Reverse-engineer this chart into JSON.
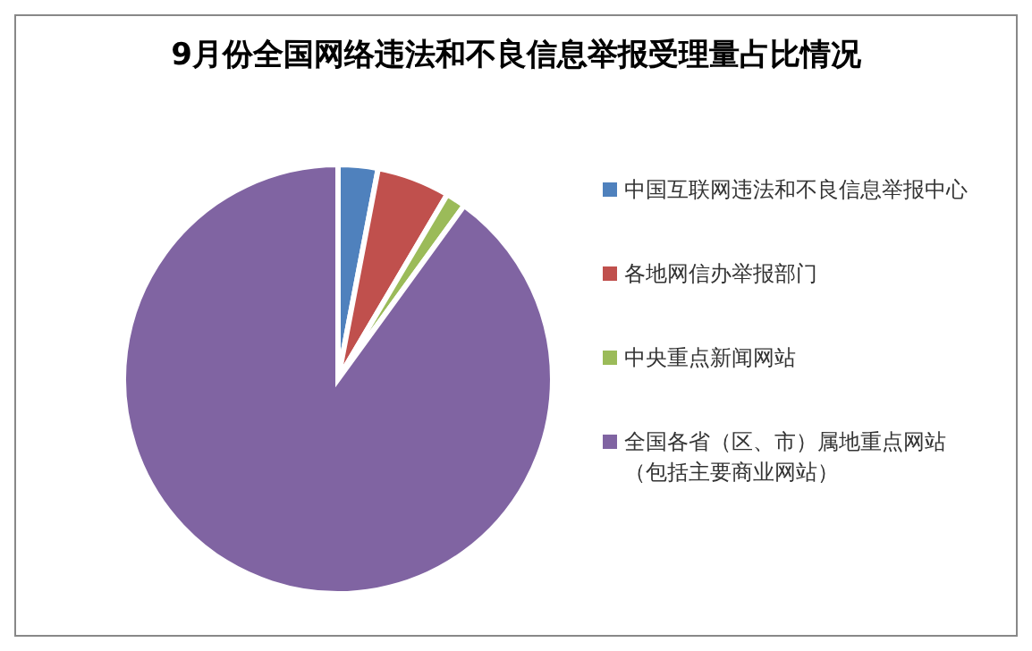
{
  "chart_data": {
    "type": "pie",
    "title": "9月份全国网络违法和不良信息举报受理量占比情况",
    "categories": [
      "中国互联网违法和不良信息举报中心",
      "各地网信办举报部门",
      "中央重点新闻网站",
      "全国各省（区、市）属地重点网站（包括主要商业网站）"
    ],
    "values": [
      3,
      5.5,
      1.5,
      90
    ],
    "colors": [
      "#4f81bd",
      "#c0504d",
      "#9bbb59",
      "#8064a2"
    ],
    "legend": "right"
  }
}
